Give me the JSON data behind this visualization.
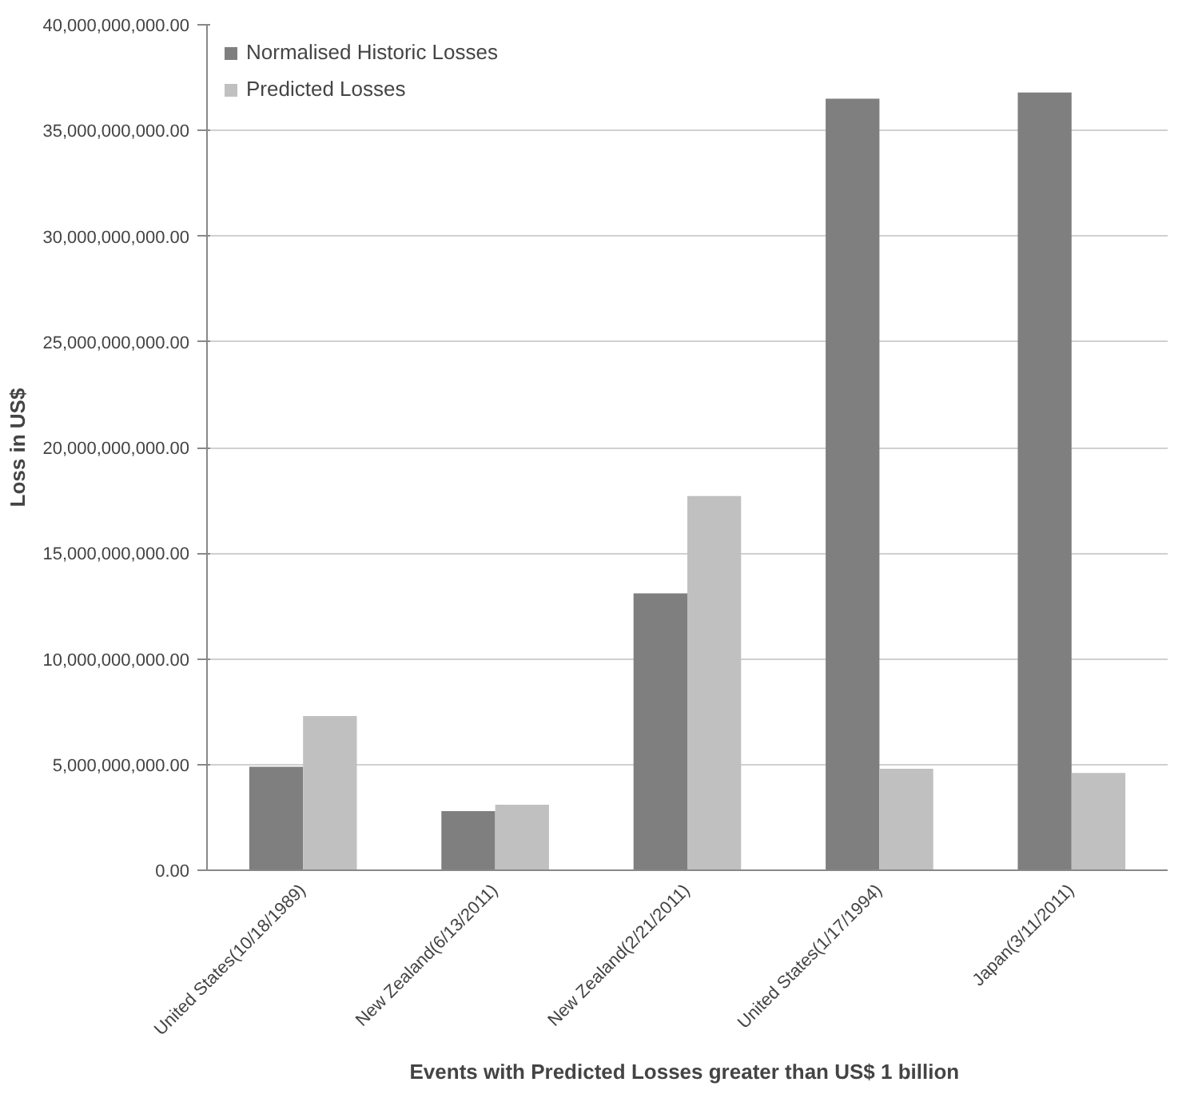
{
  "chart_data": {
    "type": "bar",
    "xlabel": "Events with Predicted Losses greater than  US$ 1 billion",
    "ylabel": "Loss in US$",
    "categories": [
      "United States(10/18/1989)",
      "New Zealand(6/13/2011)",
      "New Zealand(2/21/2011)",
      "United States(1/17/1994)",
      "Japan(3/11/2011)"
    ],
    "series": [
      {
        "name": "Normalised Historic Losses",
        "color": "#7f7f7f",
        "values": [
          4900000000,
          2800000000,
          13100000000,
          36500000000,
          36800000000
        ]
      },
      {
        "name": "Predicted Losses",
        "color": "#c0c0c0",
        "values": [
          7300000000,
          3100000000,
          17700000000,
          4800000000,
          4600000000
        ]
      }
    ],
    "ylim": [
      0,
      40000000000
    ],
    "yticks": [
      {
        "value": 0,
        "label": "0.00"
      },
      {
        "value": 5000000000,
        "label": "5,000,000,000.00"
      },
      {
        "value": 10000000000,
        "label": "10,000,000,000.00"
      },
      {
        "value": 15000000000,
        "label": "15,000,000,000.00"
      },
      {
        "value": 20000000000,
        "label": "20,000,000,000.00"
      },
      {
        "value": 25000000000,
        "label": "25,000,000,000.00"
      },
      {
        "value": 30000000000,
        "label": "30,000,000,000.00"
      },
      {
        "value": 35000000000,
        "label": "35,000,000,000.00"
      },
      {
        "value": 40000000000,
        "label": "40,000,000,000.00"
      }
    ],
    "grid": "y",
    "legend": "top left"
  }
}
